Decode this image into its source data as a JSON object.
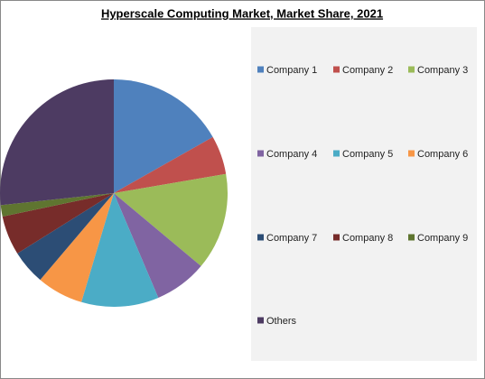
{
  "chart_data": {
    "type": "pie",
    "title": "Hyperscale Computing Market, Market Share, 2021",
    "categories": [
      "Company 1",
      "Company 2",
      "Company 3",
      "Company 4",
      "Company 5",
      "Company 6",
      "Company 7",
      "Company 8",
      "Company 9",
      "Others"
    ],
    "values": [
      16.8,
      5.5,
      13.8,
      7.5,
      11,
      6.6,
      4.9,
      5.6,
      1.6,
      26.7
    ],
    "colors": [
      "#4f81bd",
      "#c0504d",
      "#9bbb59",
      "#8064a2",
      "#4bacc6",
      "#f79646",
      "#2c4d75",
      "#772c2a",
      "#5f7530",
      "#4d3b62"
    ],
    "legend": "right"
  }
}
